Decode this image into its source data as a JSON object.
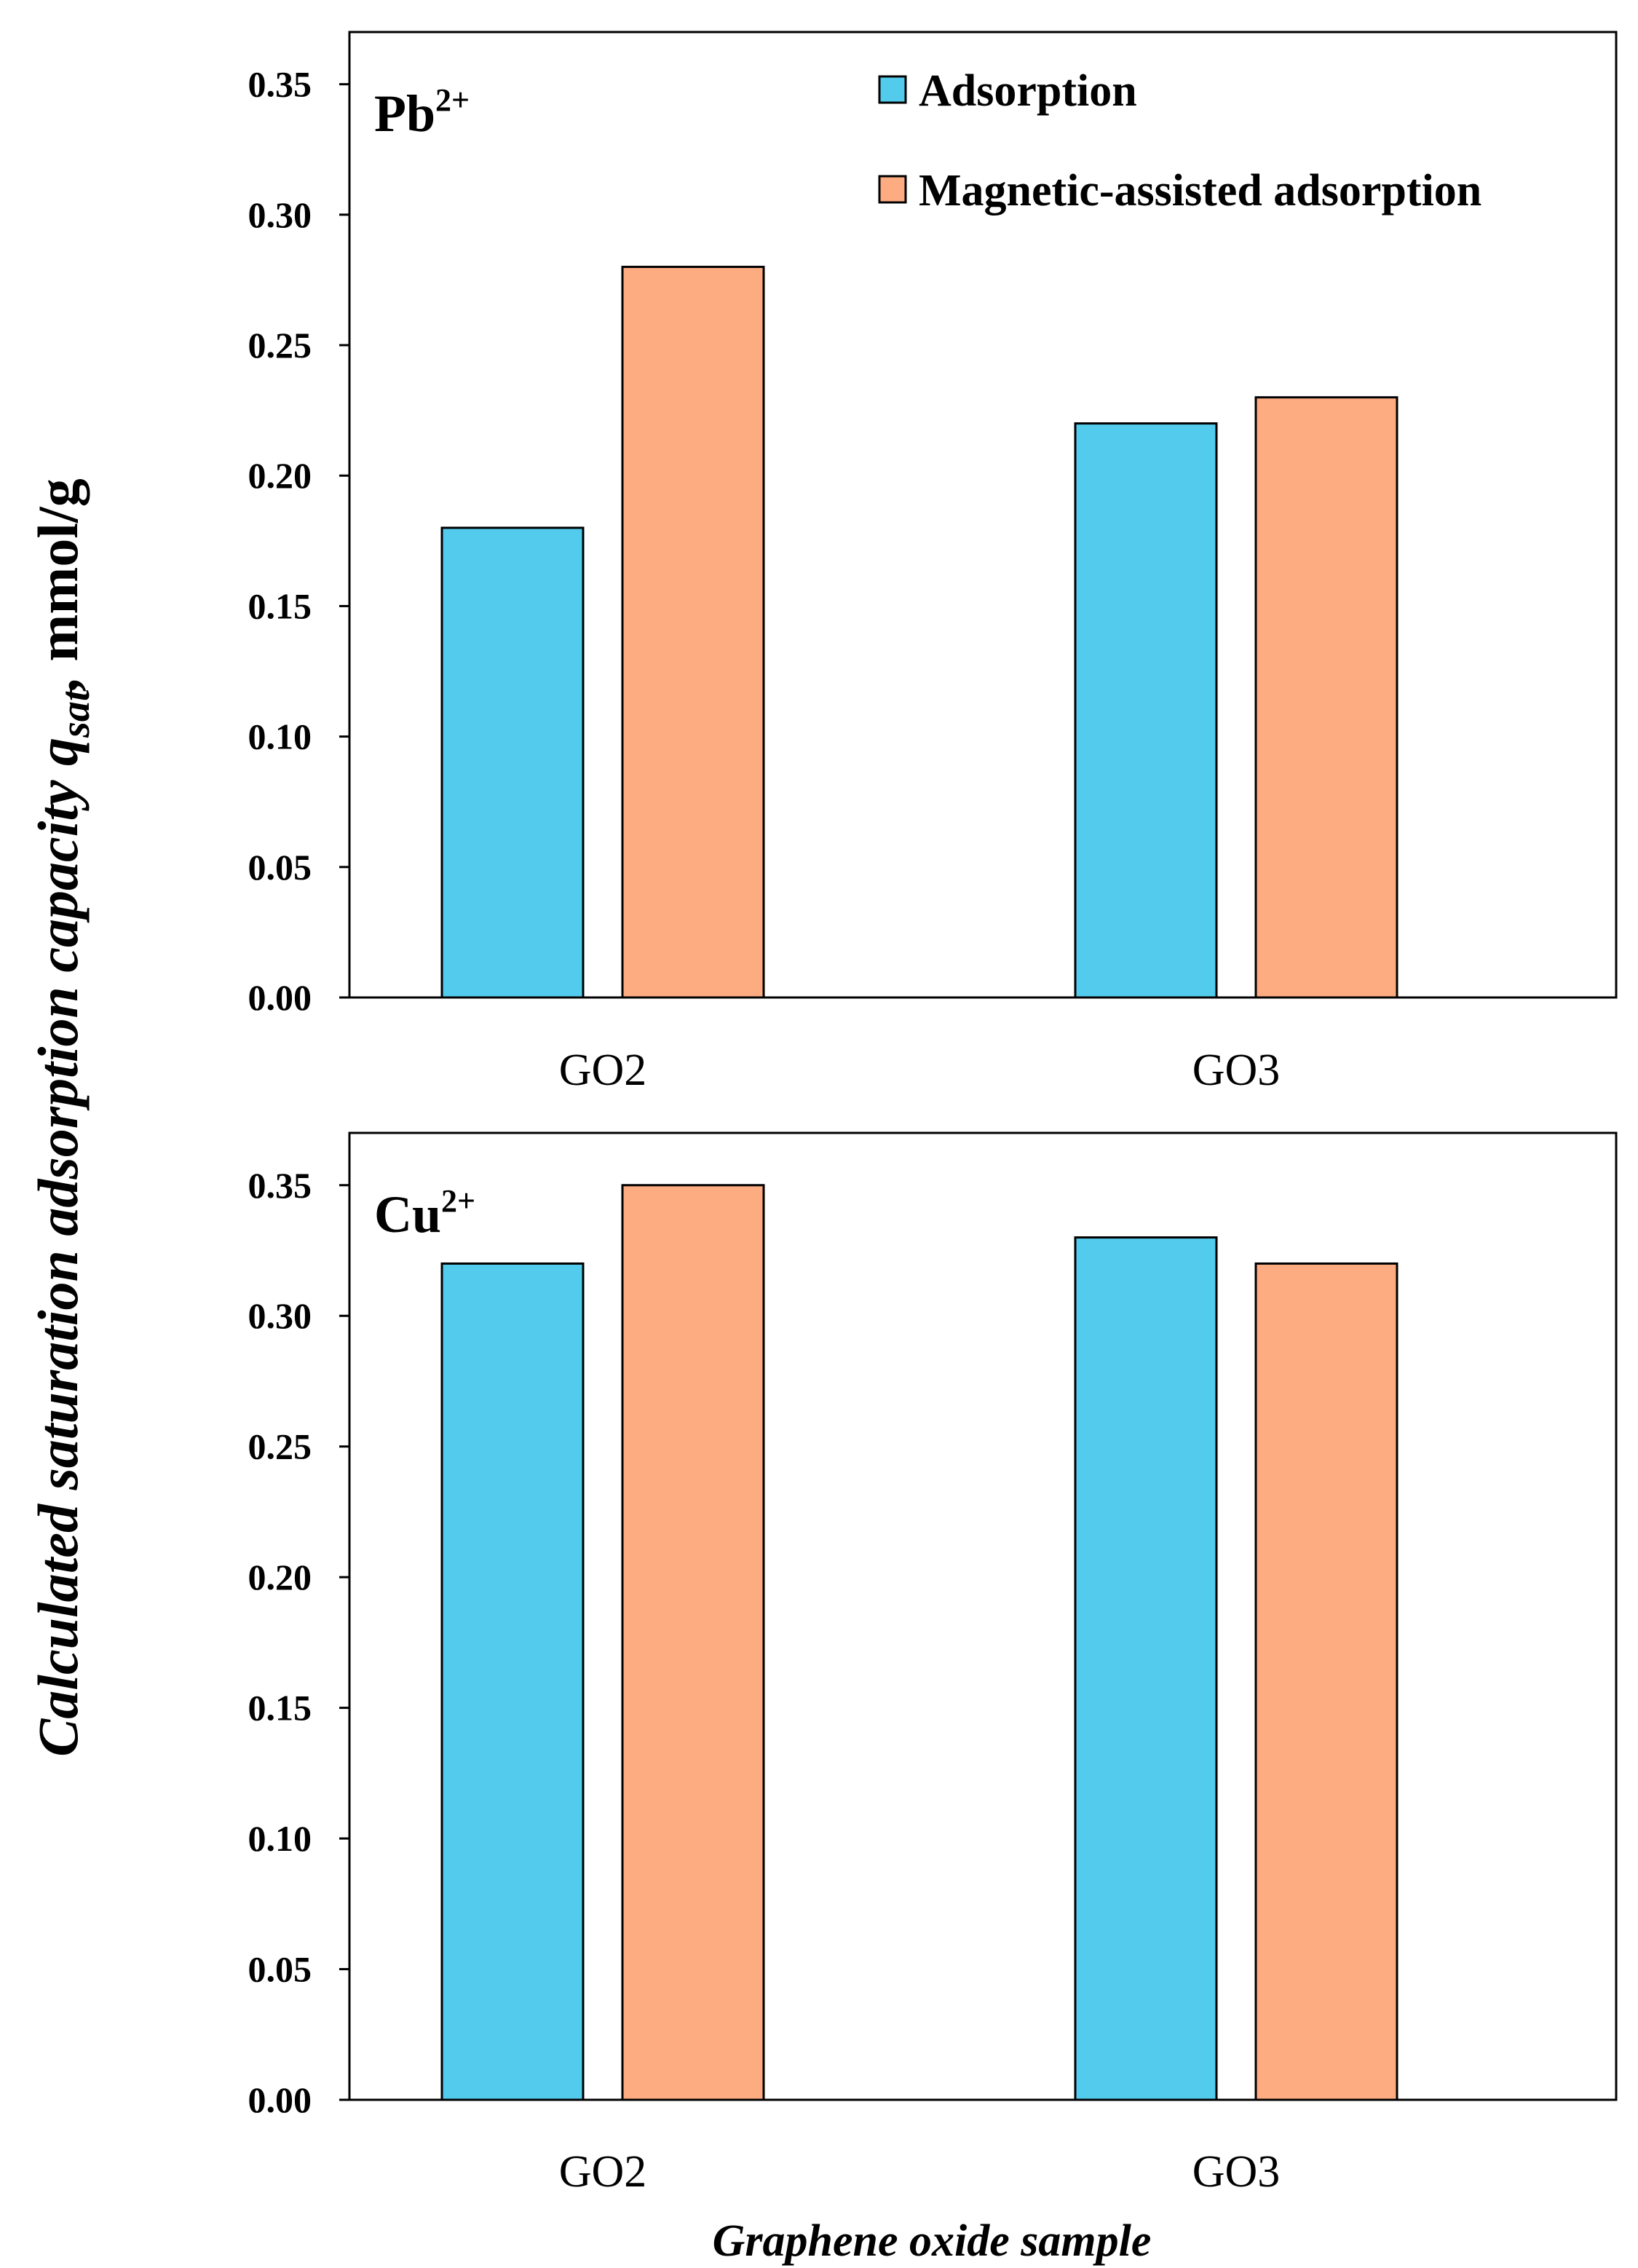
{
  "colors": {
    "adsorption": "#53CBEC",
    "magnetic": "#FDAB81",
    "axis": "#000000"
  },
  "y_axis_title": {
    "main": "Calculated saturation adsorption capacity q",
    "subscript": "sat",
    "comma": ",",
    "unit": "mmol/g"
  },
  "x_axis_title": "Graphene oxide sample",
  "legend": {
    "adsorption": "Adsorption",
    "magnetic": "Magnetic-assisted adsorption"
  },
  "chart_data": [
    {
      "type": "bar",
      "panel_label": "Pb",
      "panel_sup": "2+",
      "categories": [
        "GO2",
        "GO3"
      ],
      "series": [
        {
          "name": "Adsorption",
          "values": [
            0.18,
            0.22
          ]
        },
        {
          "name": "Magnetic-assisted adsorption",
          "values": [
            0.28,
            0.23
          ]
        }
      ],
      "ylim": [
        0,
        0.37
      ],
      "yticks": [
        "0.00",
        "0.05",
        "0.10",
        "0.15",
        "0.20",
        "0.25",
        "0.30",
        "0.35"
      ],
      "legend_position": "top-right"
    },
    {
      "type": "bar",
      "panel_label": "Cu",
      "panel_sup": "2+",
      "categories": [
        "GO2",
        "GO3"
      ],
      "series": [
        {
          "name": "Adsorption",
          "values": [
            0.32,
            0.33
          ]
        },
        {
          "name": "Magnetic-assisted adsorption",
          "values": [
            0.35,
            0.32
          ]
        }
      ],
      "ylim": [
        0,
        0.37
      ],
      "yticks": [
        "0.00",
        "0.05",
        "0.10",
        "0.15",
        "0.20",
        "0.25",
        "0.30",
        "0.35"
      ]
    }
  ]
}
